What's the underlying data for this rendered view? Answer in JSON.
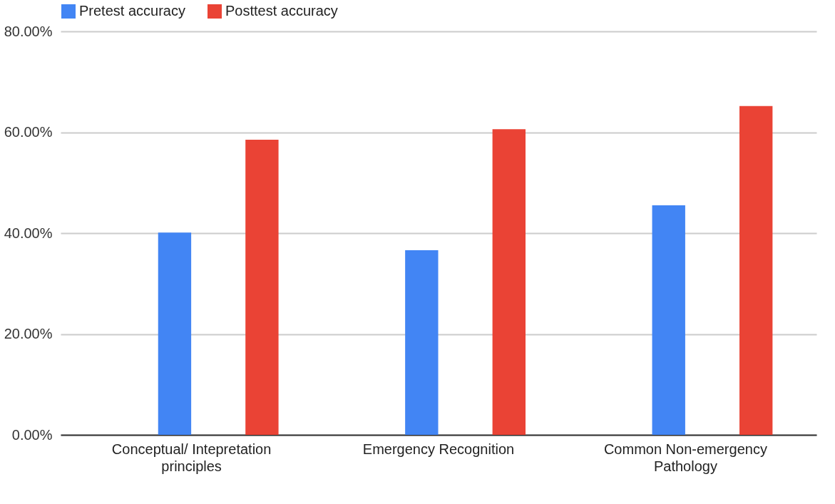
{
  "chart_data": {
    "type": "bar",
    "categories": [
      "Conceptual/ Intepretation principles",
      "Emergency Recognition",
      "Common Non-emergency Pathology"
    ],
    "series": [
      {
        "name": "Pretest accuracy",
        "color": "#4285f4",
        "values": [
          40.1,
          36.6,
          45.5
        ]
      },
      {
        "name": "Posttest accuracy",
        "color": "#ea4335",
        "values": [
          58.5,
          60.6,
          65.2
        ]
      }
    ],
    "ylim": [
      0,
      80
    ],
    "yticks": [
      {
        "value": 0,
        "label": "0.00%"
      },
      {
        "value": 20,
        "label": "20.00%"
      },
      {
        "value": 40,
        "label": "40.00%"
      },
      {
        "value": 60,
        "label": "60.00%"
      },
      {
        "value": 80,
        "label": "80.00%"
      }
    ],
    "grid": "y",
    "legend": "top"
  }
}
